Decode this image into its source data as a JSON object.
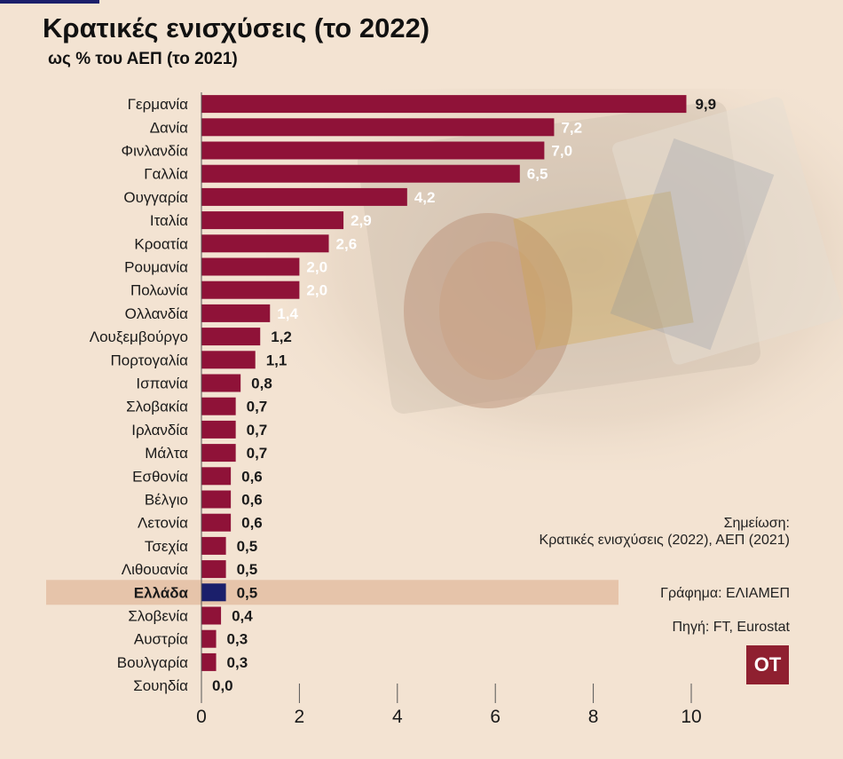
{
  "header": {
    "title": "Κρατικές ενισχύσεις (το 2022)",
    "subtitle": "ως % του ΑΕΠ (το 2021)"
  },
  "notes": {
    "note_title": "Σημείωση:",
    "note_body": "Κρατικές ενισχύσεις (2022), ΑΕΠ (2021)",
    "credit": "Γράφημα: ΕΛΙΑΜΕΠ",
    "source": "Πηγή: FT, Eurostat"
  },
  "logo": {
    "text": "OT"
  },
  "colors": {
    "background": "#f3e3d2",
    "bar": "#8f1238",
    "highlight_bar": "#1b1f6b",
    "highlight_band": "#e6c4aa",
    "accent_line": "#1b1f6b"
  },
  "chart_data": {
    "type": "bar",
    "orientation": "horizontal",
    "categories": [
      "Γερμανία",
      "Δανία",
      "Φινλανδία",
      "Γαλλία",
      "Ουγγαρία",
      "Ιταλία",
      "Κροατία",
      "Ρουμανία",
      "Πολωνία",
      "Ολλανδία",
      "Λουξεμβούργο",
      "Πορτογαλία",
      "Ισπανία",
      "Σλοβακία",
      "Ιρλανδία",
      "Μάλτα",
      "Εσθονία",
      "Βέλγιο",
      "Λετονία",
      "Τσεχία",
      "Λιθουανία",
      "Ελλάδα",
      "Σλοβενία",
      "Αυστρία",
      "Βουλγαρία",
      "Σουηδία"
    ],
    "values": [
      9.9,
      7.2,
      7.0,
      6.5,
      4.2,
      2.9,
      2.6,
      2.0,
      2.0,
      1.4,
      1.2,
      1.1,
      0.8,
      0.7,
      0.7,
      0.7,
      0.6,
      0.6,
      0.6,
      0.5,
      0.5,
      0.5,
      0.4,
      0.3,
      0.3,
      0.0
    ],
    "value_labels": [
      "9,9",
      "7,2",
      "7,0",
      "6,5",
      "4,2",
      "2,9",
      "2,6",
      "2,0",
      "2,0",
      "1,4",
      "1,2",
      "1,1",
      "0,8",
      "0,7",
      "0,7",
      "0,7",
      "0,6",
      "0,6",
      "0,6",
      "0,5",
      "0,5",
      "0,5",
      "0,4",
      "0,3",
      "0,3",
      "0,0"
    ],
    "highlight": "Ελλάδα",
    "xlim": [
      0,
      10
    ],
    "xticks": [
      0,
      2,
      4,
      6,
      8,
      10
    ],
    "xtick_labels": [
      "0",
      "2",
      "4",
      "6",
      "8",
      "10"
    ],
    "grid": false
  }
}
